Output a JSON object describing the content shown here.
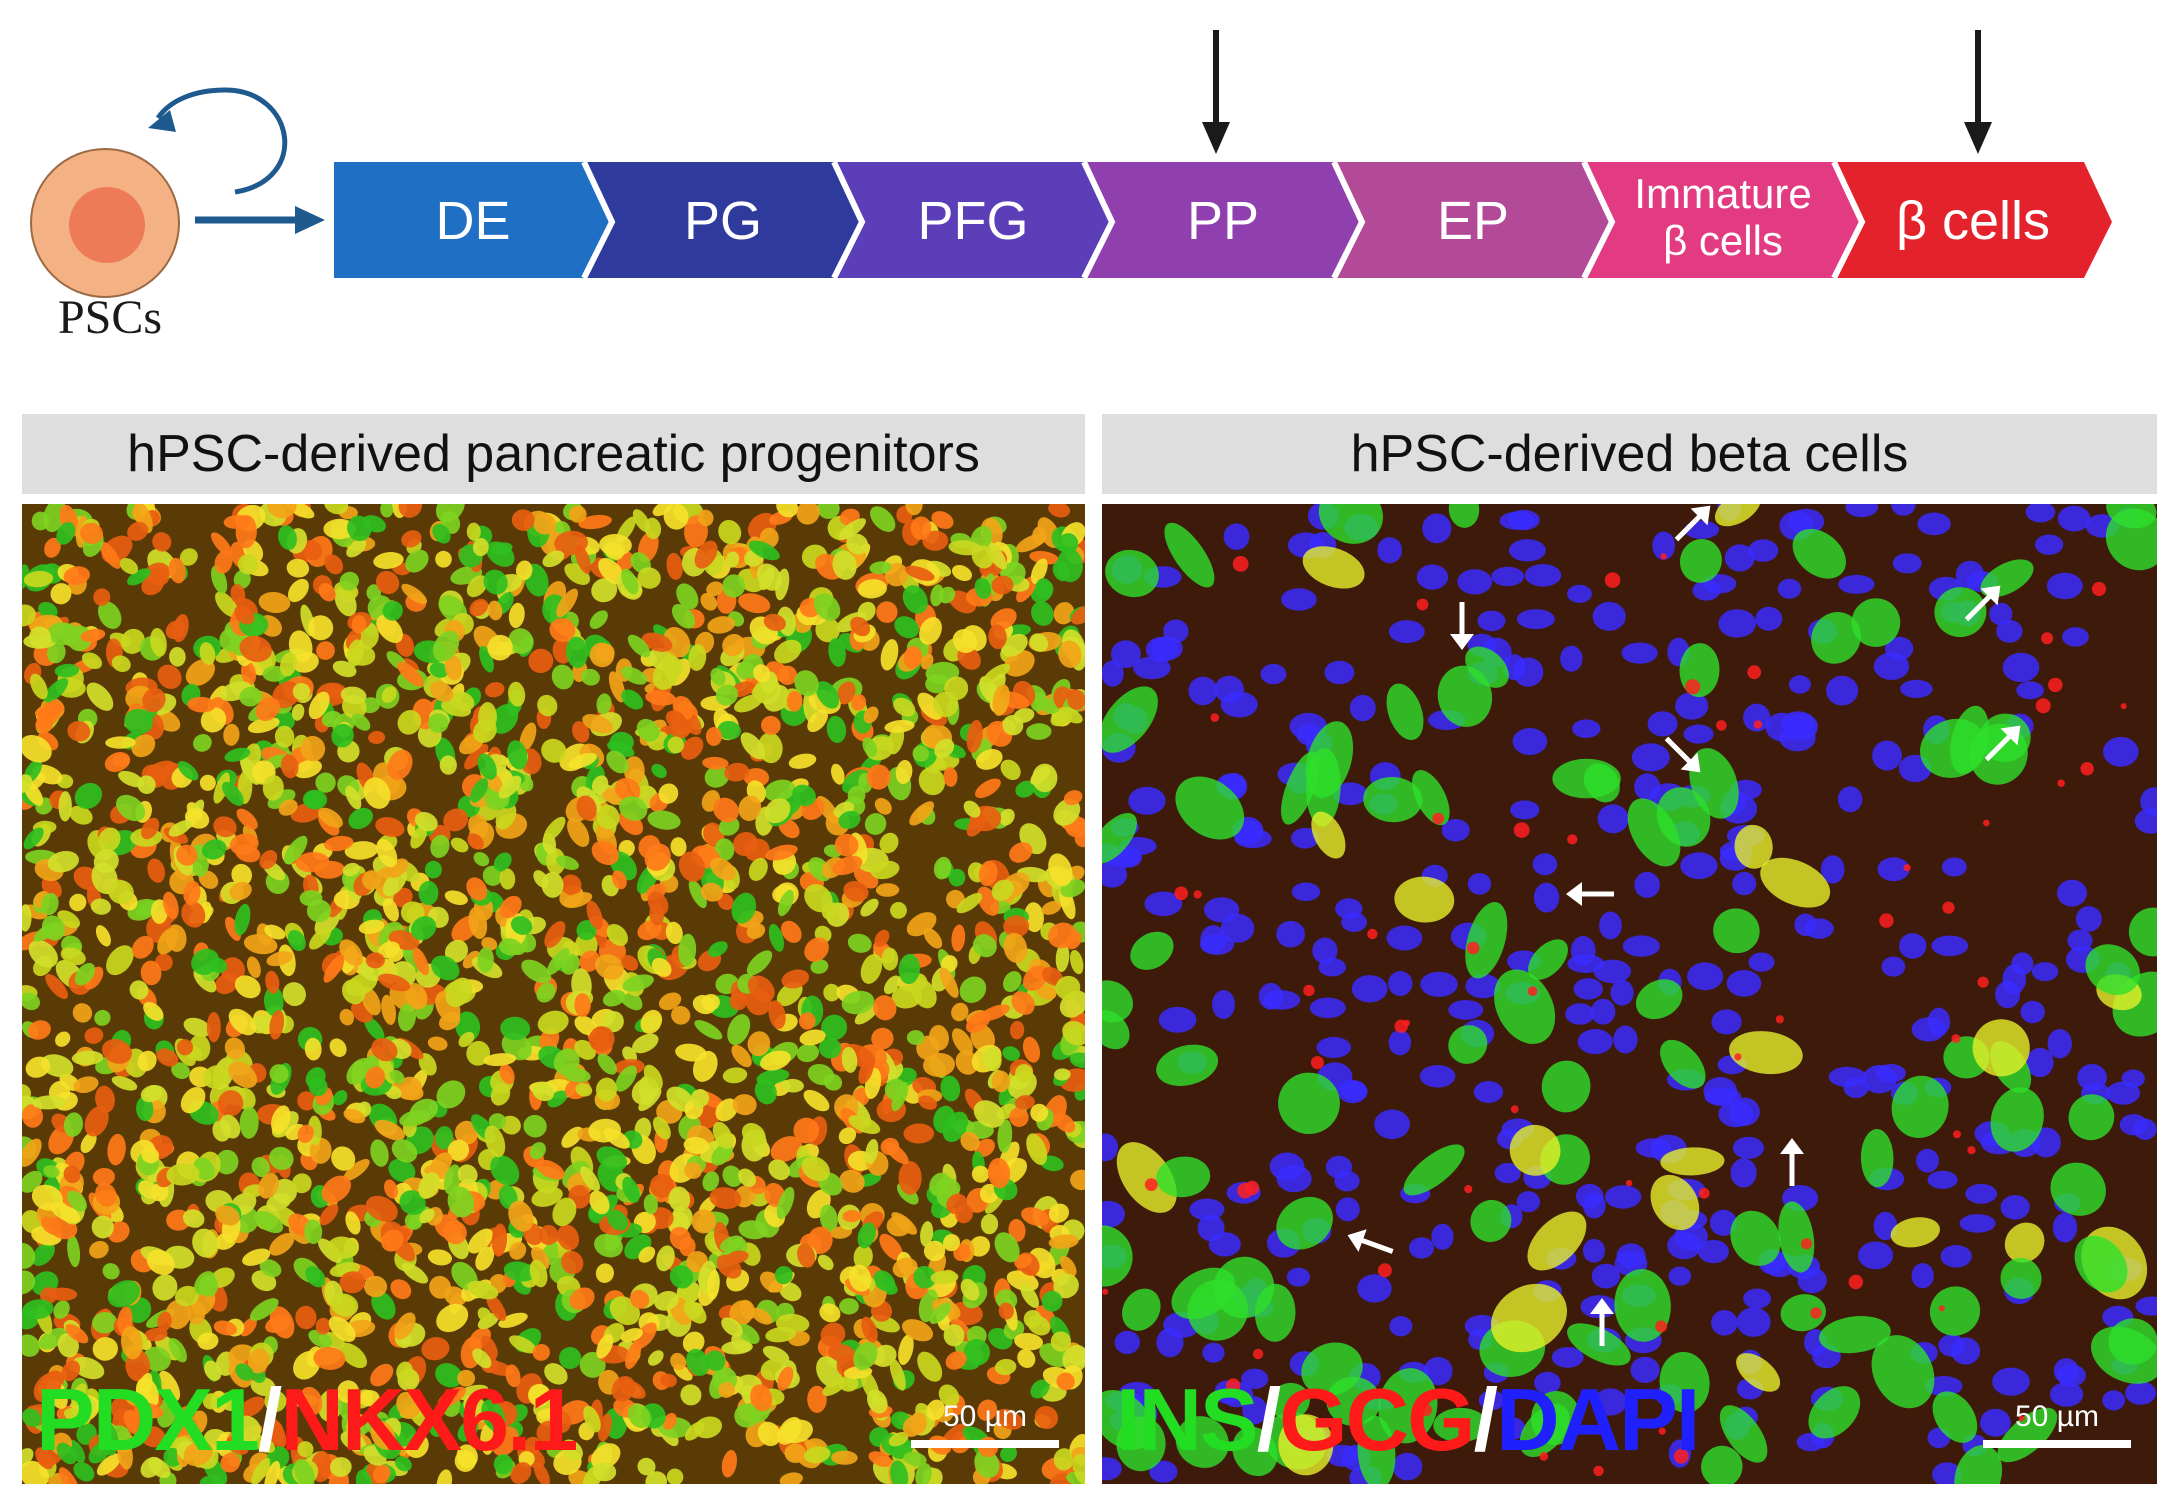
{
  "psc_label": "PSCs",
  "stages": [
    {
      "label": "DE",
      "color": "#1f6fc4"
    },
    {
      "label": "PG",
      "color": "#2e3b9c"
    },
    {
      "label": "PFG",
      "color": "#5c3fb8"
    },
    {
      "label": "PP",
      "color": "#8f3fae"
    },
    {
      "label": "EP",
      "color": "#b34a98"
    },
    {
      "label_line1": "Immature",
      "label_line2": "β cells",
      "color": "#e23b82"
    },
    {
      "label": "β cells",
      "color": "#e4222c"
    }
  ],
  "panels": {
    "left": {
      "title": "hPSC-derived pancreatic progenitors",
      "stain_1": "PDX1",
      "separator": "/",
      "stain_2": "NKX6.1",
      "scale_bar_label": "50 µm"
    },
    "right": {
      "title": "hPSC-derived beta cells",
      "stain_1": "INS",
      "separator_1": "/",
      "stain_2": "GCG",
      "separator_2": "/",
      "stain_3": "DAPI",
      "scale_bar_label": "50 µm"
    }
  },
  "colors": {
    "green": "#22dd22",
    "red": "#ff1a1a",
    "blue": "#2020ff",
    "white": "#ffffff",
    "arrow": "#1f5a8f"
  }
}
